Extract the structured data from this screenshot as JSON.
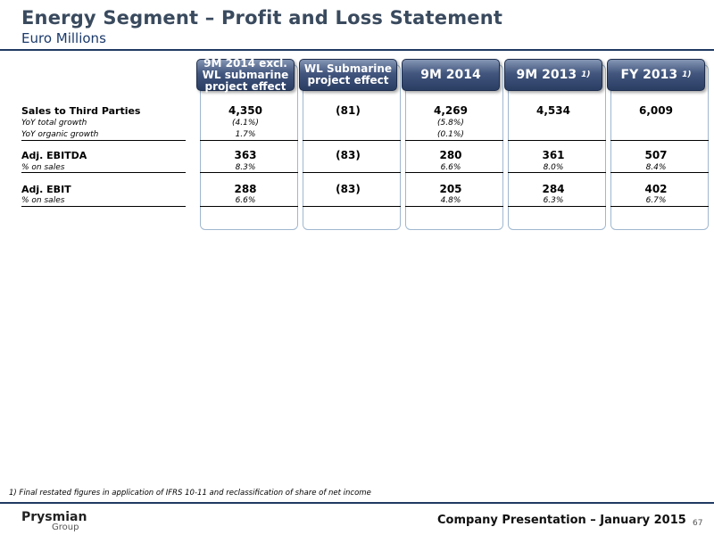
{
  "title": "Energy Segment – Profit and Loss Statement",
  "subtitle": "Euro Millions",
  "columns": [
    {
      "label": "9M 2014 excl. WL submarine project effect",
      "footnote": ""
    },
    {
      "label": "WL Submarine project effect",
      "footnote": ""
    },
    {
      "label": "9M 2014",
      "footnote": ""
    },
    {
      "label": "9M 2013",
      "footnote": "1)"
    },
    {
      "label": "FY 2013",
      "footnote": "1)"
    }
  ],
  "rows": [
    {
      "label": "Sales to Third Parties",
      "style": "bold",
      "values": [
        "4,350",
        "(81)",
        "4,269",
        "4,534",
        "6,009"
      ]
    },
    {
      "label": "YoY total growth",
      "style": "italic",
      "values": [
        "(4.1%)",
        "",
        "(5.8%)",
        "",
        ""
      ]
    },
    {
      "label": "YoY organic growth",
      "style": "italic",
      "values": [
        "1.7%",
        "",
        "(0.1%)",
        "",
        ""
      ]
    },
    {
      "label": "Adj. EBITDA",
      "style": "bold",
      "values": [
        "363",
        "(83)",
        "280",
        "361",
        "507"
      ]
    },
    {
      "label": "% on sales",
      "style": "italic",
      "values": [
        "8.3%",
        "",
        "6.6%",
        "8.0%",
        "8.4%"
      ]
    },
    {
      "label": "Adj. EBIT",
      "style": "bold",
      "values": [
        "288",
        "(83)",
        "205",
        "284",
        "402"
      ]
    },
    {
      "label": "% on sales",
      "style": "italic",
      "values": [
        "6.6%",
        "",
        "4.8%",
        "6.3%",
        "6.7%"
      ]
    }
  ],
  "footnote": "1) Final restated figures in application of IFRS 10-11 and reclassification of share of net income",
  "logo": {
    "name": "Prysmian",
    "sub": "Group"
  },
  "footer": "Company Presentation – January 2015",
  "page_number": "67"
}
